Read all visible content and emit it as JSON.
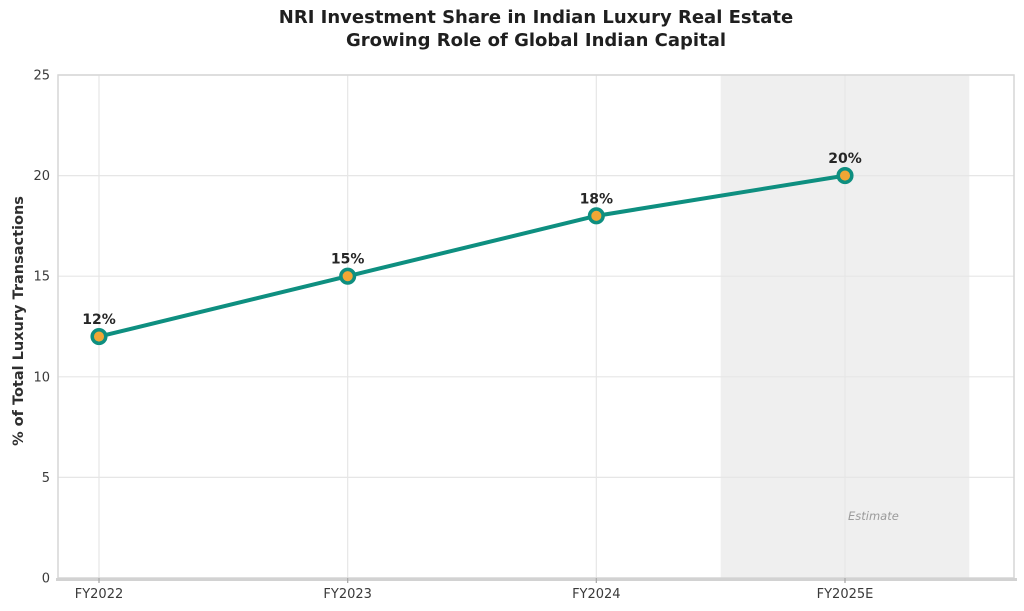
{
  "chart_data": {
    "type": "line",
    "title_line1": "NRI Investment Share in Indian Luxury Real Estate",
    "title_line2": "Growing Role of Global Indian Capital",
    "xlabel": "",
    "ylabel": "% of Total Luxury Transactions",
    "categories": [
      "FY2022",
      "FY2023",
      "FY2024",
      "FY2025E"
    ],
    "values": [
      12,
      15,
      18,
      20
    ],
    "point_labels": [
      "12%",
      "15%",
      "18%",
      "20%"
    ],
    "yticks": [
      0,
      5,
      10,
      15,
      20,
      25
    ],
    "ylim": [
      0,
      25
    ],
    "grid": true,
    "legend": "none",
    "estimate_region": {
      "category_index": 3,
      "label": "Estimate"
    },
    "colors": {
      "line": "#0e8f80",
      "marker_fill": "#f1a634",
      "marker_edge": "#0e8f80",
      "estimate_band": "#efefef",
      "grid": "#e6e6e6",
      "border": "#d6d6d6",
      "axis_line": "#d2d2d2",
      "tick_mark": "#ababab",
      "title": "#1f1f1f",
      "tick_label": "#3a3a3a",
      "data_label": "#262626",
      "estimate_text": "#9b9b9b",
      "background": "#ffffff"
    }
  }
}
